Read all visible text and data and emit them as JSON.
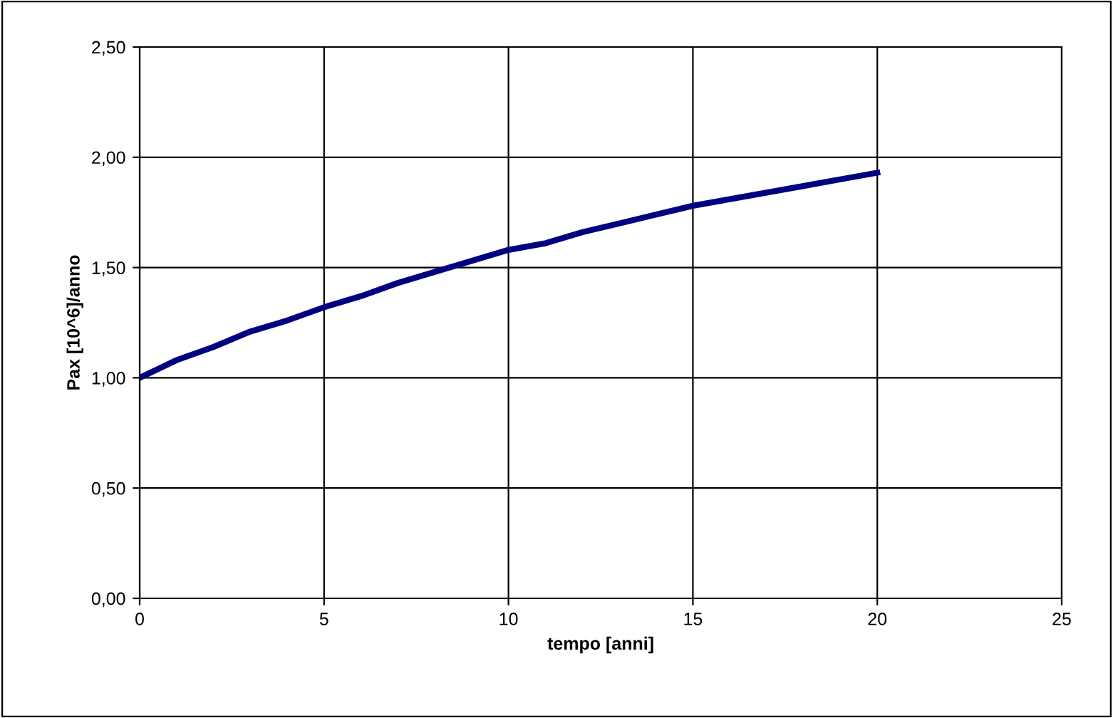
{
  "chart_data": {
    "type": "line",
    "xlabel": "tempo [anni]",
    "ylabel": "Pax [10^6]/anno",
    "x": [
      0,
      1,
      2,
      3,
      4,
      5,
      6,
      7,
      8,
      9,
      10,
      11,
      12,
      13,
      14,
      15,
      16,
      17,
      18,
      19,
      20
    ],
    "series": [
      {
        "color": "#000080",
        "values": [
          1.0,
          1.08,
          1.14,
          1.21,
          1.26,
          1.32,
          1.37,
          1.43,
          1.48,
          1.53,
          1.58,
          1.61,
          1.66,
          1.7,
          1.74,
          1.78,
          1.81,
          1.84,
          1.87,
          1.9,
          1.93
        ]
      }
    ],
    "xlim": [
      0,
      25
    ],
    "xticks": [
      0,
      5,
      10,
      15,
      20,
      25
    ],
    "ylim": [
      0,
      2.5
    ],
    "yticks": [
      {
        "value": 0,
        "label": "0,00"
      },
      {
        "value": 0.5,
        "label": "0,50"
      },
      {
        "value": 1,
        "label": "1,00"
      },
      {
        "value": 1.5,
        "label": "1,50"
      },
      {
        "value": 2,
        "label": "2,00"
      },
      {
        "value": 2.5,
        "label": "2,50"
      }
    ],
    "grid": true,
    "marker": "none",
    "line_style": "solid",
    "legend": false
  }
}
